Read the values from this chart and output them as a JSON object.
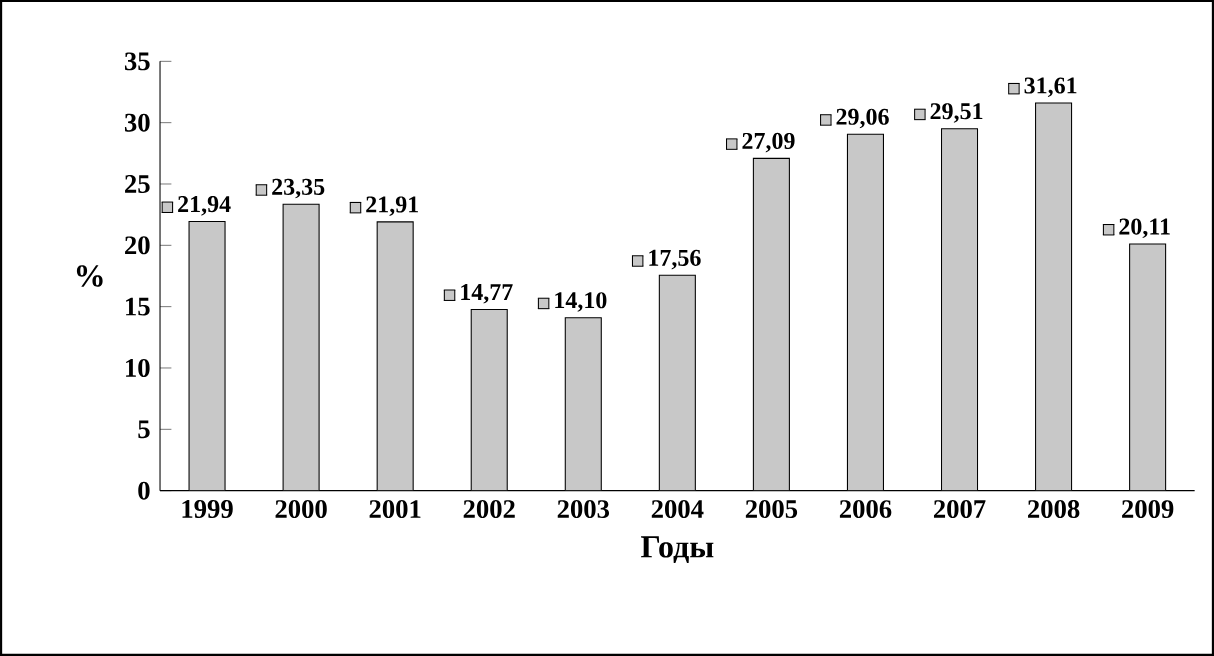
{
  "chart_data": {
    "type": "bar",
    "categories": [
      "1999",
      "2000",
      "2001",
      "2002",
      "2003",
      "2004",
      "2005",
      "2006",
      "2007",
      "2008",
      "2009"
    ],
    "values": [
      21.94,
      23.35,
      21.91,
      14.77,
      14.1,
      17.56,
      27.09,
      29.06,
      29.51,
      31.61,
      20.11
    ],
    "value_labels": [
      "21,94",
      "23,35",
      "21,91",
      "14,77",
      "14,10",
      "17,56",
      "27,09",
      "29,06",
      "29,51",
      "31,61",
      "20,11"
    ],
    "color": "#c8c8c8",
    "xlabel": "Годы",
    "ylabel": "%",
    "ylim": [
      0,
      35
    ],
    "yticks": [
      0,
      5,
      10,
      15,
      20,
      25,
      30,
      35
    ],
    "grid": false
  }
}
